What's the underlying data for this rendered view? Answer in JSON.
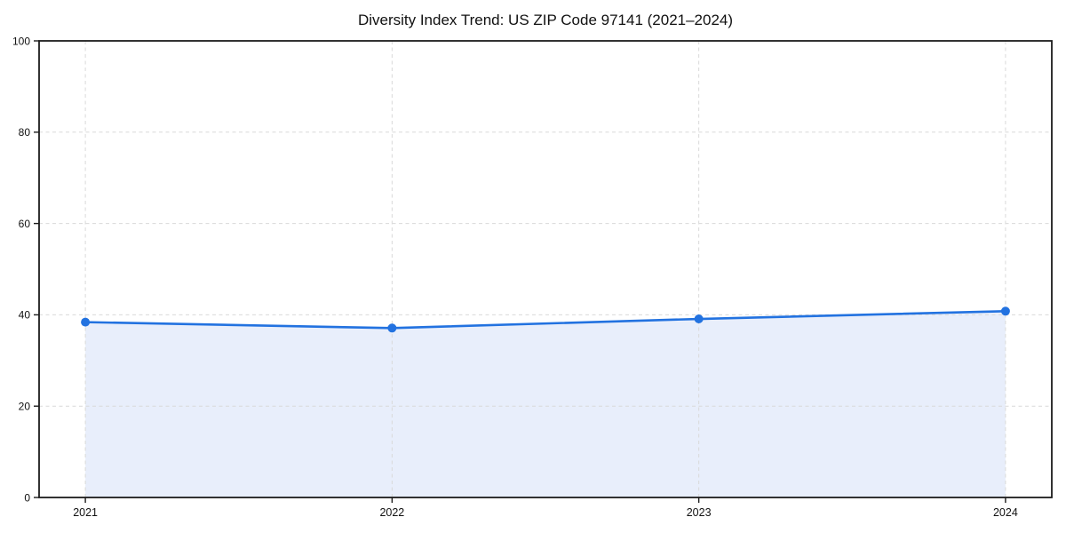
{
  "figure": {
    "background": "#ffffff"
  },
  "chart_data": {
    "type": "area",
    "title": "Diversity Index Trend: US ZIP Code 97141 (2021–2024)",
    "x": [
      2021,
      2022,
      2023,
      2024
    ],
    "series": [
      {
        "name": "Diversity Index",
        "values": [
          38.4,
          37.1,
          39.1,
          40.8
        ]
      }
    ],
    "xlabel": "",
    "ylabel": "",
    "ylim": [
      0,
      100
    ],
    "yticks": [
      0,
      20,
      40,
      60,
      80,
      100
    ],
    "grid": true,
    "grid_style": "dashed",
    "legend": "none",
    "markers": true,
    "colors": {
      "line": "#2272e0",
      "marker": "#2272e0",
      "area_fill": "#e8eefb",
      "grid": "#d9d9d9",
      "axis": "#1c1c1c",
      "text": "#111111"
    }
  }
}
